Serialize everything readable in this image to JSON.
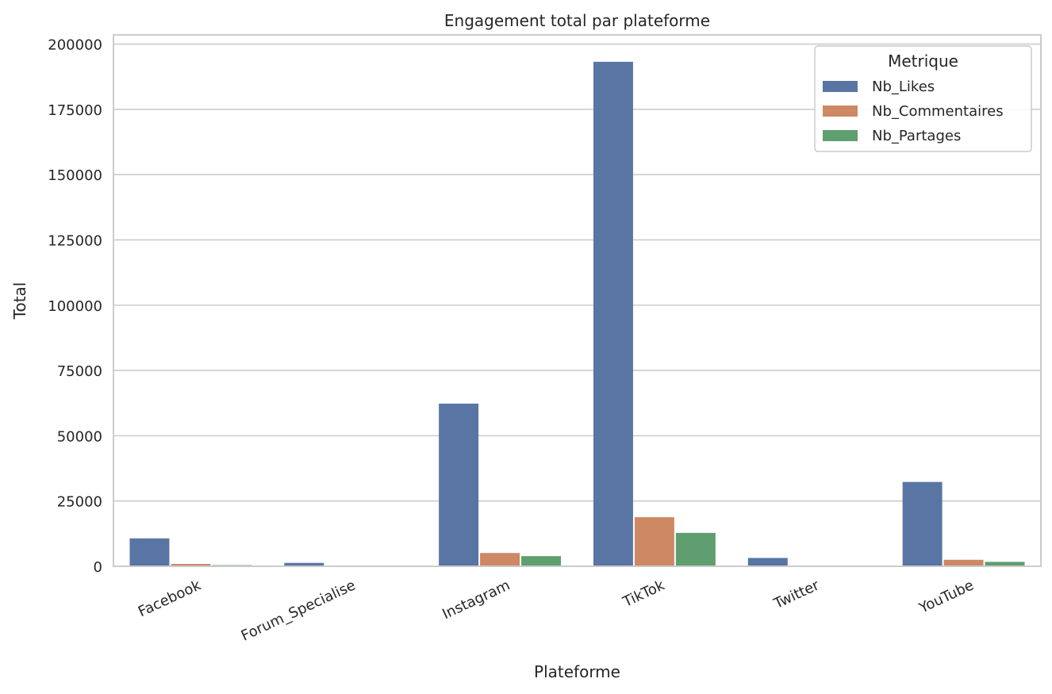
{
  "chart_data": {
    "type": "bar",
    "title": "Engagement total par plateforme",
    "xlabel": "Plateforme",
    "ylabel": "Total",
    "categories": [
      "Facebook",
      "Forum_Specialise",
      "Instagram",
      "TikTok",
      "Twitter",
      "YouTube"
    ],
    "series": [
      {
        "name": "Nb_Likes",
        "color": "#5875a4",
        "values": [
          10700,
          1300,
          62300,
          193200,
          3200,
          32300
        ]
      },
      {
        "name": "Nb_Commentaires",
        "color": "#cc8963",
        "values": [
          900,
          150,
          5100,
          18800,
          300,
          2500
        ]
      },
      {
        "name": "Nb_Partages",
        "color": "#5f9e6e",
        "values": [
          450,
          80,
          3900,
          12800,
          150,
          1700
        ]
      }
    ],
    "ylim": [
      0,
      203500
    ],
    "yticks": [
      0,
      25000,
      50000,
      75000,
      100000,
      125000,
      150000,
      175000,
      200000
    ],
    "grid": "horizontal",
    "legend": {
      "title": "Metrique",
      "position": "top-right"
    }
  }
}
